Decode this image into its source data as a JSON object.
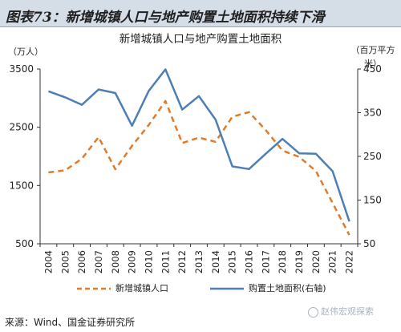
{
  "figure_header": "图表73：新增城镇人口与地产购置土地面积持续下滑",
  "source_note": "来源：Wind、国金证券研究所",
  "watermark": "赵伟宏观探索",
  "chart_data": {
    "type": "line",
    "title": "新增城镇人口与地产购置土地面积",
    "left_unit": "（万人）",
    "right_unit_line1": "（百万平方",
    "right_unit_line2": "米）",
    "x": [
      "2004",
      "2005",
      "2006",
      "2007",
      "2008",
      "2009",
      "2010",
      "2011",
      "2012",
      "2013",
      "2014",
      "2015",
      "2016",
      "2017",
      "2018",
      "2019",
      "2020",
      "2021",
      "2022"
    ],
    "ylim_left": [
      500,
      3500
    ],
    "ylim_right": [
      50,
      450
    ],
    "yticks_left": [
      "500",
      "1500",
      "2500",
      "3500"
    ],
    "yticks_right": [
      "50",
      "150",
      "250",
      "350",
      "450"
    ],
    "series": [
      {
        "name": "新增城镇人口",
        "axis": "left",
        "style": "dashed",
        "color": "#e07b28",
        "values": [
          1725,
          1760,
          1960,
          2330,
          1780,
          2180,
          2540,
          2950,
          2230,
          2320,
          2250,
          2680,
          2760,
          2450,
          2100,
          1990,
          1750,
          1200,
          650
        ]
      },
      {
        "name": "购置土地面积(右轴)",
        "axis": "right",
        "style": "solid",
        "color": "#4e7fb4",
        "values": [
          399,
          385,
          368,
          403,
          395,
          320,
          400,
          449,
          357,
          388,
          334,
          227,
          221,
          256,
          290,
          257,
          256,
          216,
          101
        ]
      }
    ]
  }
}
